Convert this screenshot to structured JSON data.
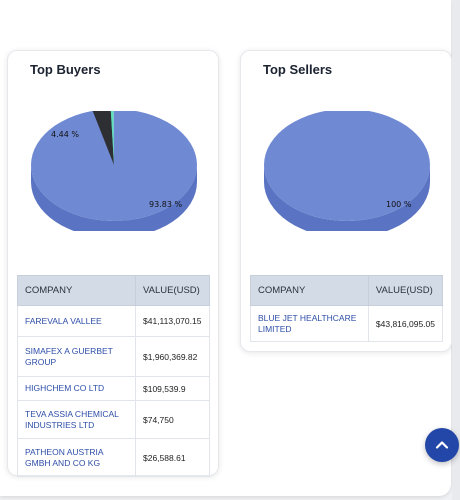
{
  "buyers": {
    "title": "Top Buyers",
    "headers": {
      "company": "COMPANY",
      "value": "VALUE(USD)"
    },
    "rows": [
      {
        "company": "FAREVALA VALLEE",
        "value": "$41,113,070.15"
      },
      {
        "company": "SIMAFEX A GUERBET GROUP",
        "value": "$1,960,369.82"
      },
      {
        "company": "HIGHCHEM CO LTD",
        "value": "$109,539.9"
      },
      {
        "company": "TEVA ASSIA CHEMICAL INDUSTRIES LTD",
        "value": "$74,750"
      },
      {
        "company": "PATHEON AUSTRIA GMBH AND CO KG",
        "value": "$26,588.61"
      }
    ],
    "pie_labels": {
      "major": "93.83 %",
      "minor": "4.44 %"
    }
  },
  "sellers": {
    "title": "Top Sellers",
    "headers": {
      "company": "COMPANY",
      "value": "VALUE(USD)"
    },
    "rows": [
      {
        "company": "BLUE JET HEALTHCARE LIMITED",
        "value": "$43,816,095.05"
      }
    ],
    "pie_labels": {
      "major": "100 %"
    }
  },
  "chart_data": [
    {
      "type": "pie",
      "title": "Top Buyers",
      "labels": [
        "FAREVALA VALLEE",
        "SIMAFEX A GUERBET GROUP",
        "HIGHCHEM CO LTD",
        "TEVA ASSIA CHEMICAL INDUSTRIES LTD",
        "PATHEON AUSTRIA GMBH AND CO KG"
      ],
      "values": [
        93.83,
        4.44,
        0.25,
        0.17,
        0.06
      ],
      "colors": [
        "#7089d3",
        "#2d2f33",
        "#5fe0b8",
        "#a7c8f0",
        "#e6ef9a"
      ]
    },
    {
      "type": "pie",
      "title": "Top Sellers",
      "labels": [
        "BLUE JET HEALTHCARE LIMITED"
      ],
      "values": [
        100
      ],
      "colors": [
        "#7089d3"
      ]
    }
  ],
  "colors": {
    "pie_top": "#7089d3",
    "pie_side": "#5a73c2",
    "accent": "#2347a8",
    "link": "#2e4ea8"
  },
  "icons": {
    "scroll_top": "arrow-up-icon"
  }
}
